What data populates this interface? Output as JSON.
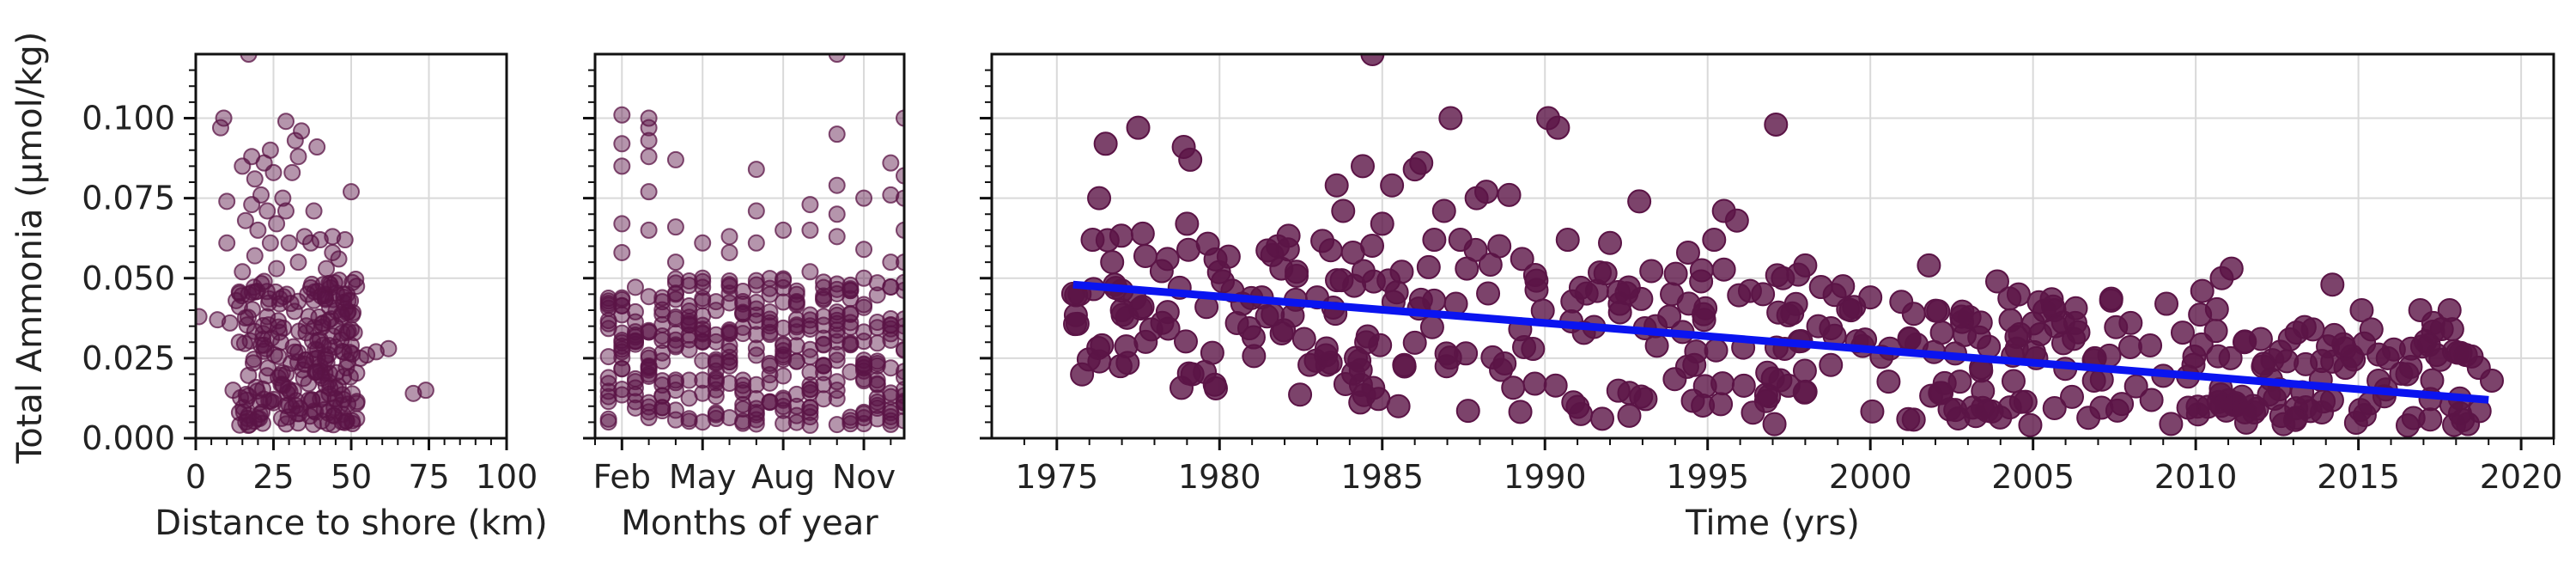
{
  "y_axis_label": "Total Ammonia (µmol/kg)",
  "colors": {
    "points": "#5b1446",
    "trend": "#0a14f0",
    "grid": "#d9d9d9",
    "axis": "#111111"
  },
  "chart_data": [
    {
      "type": "scatter",
      "xlabel": "Distance to shore (km)",
      "ylabel": "Total Ammonia (µmol/kg)",
      "xlim": [
        0,
        100
      ],
      "ylim": [
        0,
        0.12
      ],
      "xticks": [
        "0",
        "25",
        "50",
        "75",
        "100"
      ],
      "yticks": [
        "0.000",
        "0.025",
        "0.050",
        "0.075",
        "0.100"
      ],
      "grid": true,
      "marker_alpha": 0.45,
      "points": [
        [
          1,
          0.038
        ],
        [
          7,
          0.037
        ],
        [
          8,
          0.097
        ],
        [
          9,
          0.1
        ],
        [
          10,
          0.074
        ],
        [
          10,
          0.061
        ],
        [
          11,
          0.036
        ],
        [
          12,
          0.015
        ],
        [
          13,
          0.043
        ],
        [
          14,
          0.03
        ],
        [
          15,
          0.052
        ],
        [
          15,
          0.085
        ],
        [
          16,
          0.068
        ],
        [
          17,
          0.12
        ],
        [
          17,
          0.045
        ],
        [
          18,
          0.088
        ],
        [
          18,
          0.073
        ],
        [
          19,
          0.081
        ],
        [
          19,
          0.057
        ],
        [
          20,
          0.065
        ],
        [
          21,
          0.076
        ],
        [
          21,
          0.029
        ],
        [
          22,
          0.086
        ],
        [
          22,
          0.049
        ],
        [
          23,
          0.071
        ],
        [
          23,
          0.038
        ],
        [
          24,
          0.09
        ],
        [
          24,
          0.061
        ],
        [
          25,
          0.083
        ],
        [
          26,
          0.067
        ],
        [
          26,
          0.053
        ],
        [
          27,
          0.042
        ],
        [
          28,
          0.075
        ],
        [
          29,
          0.099
        ],
        [
          29,
          0.071
        ],
        [
          30,
          0.061
        ],
        [
          31,
          0.083
        ],
        [
          32,
          0.093
        ],
        [
          33,
          0.088
        ],
        [
          33,
          0.055
        ],
        [
          34,
          0.096
        ],
        [
          35,
          0.063
        ],
        [
          36,
          0.045
        ],
        [
          37,
          0.061
        ],
        [
          38,
          0.071
        ],
        [
          39,
          0.091
        ],
        [
          40,
          0.062
        ],
        [
          41,
          0.048
        ],
        [
          42,
          0.053
        ],
        [
          43,
          0.041
        ],
        [
          44,
          0.058
        ],
        [
          44,
          0.063
        ],
        [
          45,
          0.035
        ],
        [
          46,
          0.056
        ],
        [
          47,
          0.038
        ],
        [
          48,
          0.062
        ],
        [
          49,
          0.043
        ],
        [
          50,
          0.077
        ],
        [
          50,
          0.029
        ],
        [
          51,
          0.033
        ],
        [
          53,
          0.025
        ],
        [
          55,
          0.026
        ],
        [
          58,
          0.027
        ],
        [
          62,
          0.028
        ],
        [
          70,
          0.014
        ],
        [
          74,
          0.015
        ]
      ],
      "cluster": {
        "x_range": [
          14,
          52
        ],
        "y_range": [
          0.004,
          0.05
        ],
        "count": 230
      }
    },
    {
      "type": "scatter",
      "xlabel": "Months of year",
      "ylabel": "Total Ammonia (µmol/kg)",
      "xlim": [
        1,
        12.5
      ],
      "ylim": [
        0,
        0.12
      ],
      "xticks": [
        "Feb",
        "May",
        "Aug",
        "Nov"
      ],
      "xtick_values": [
        2,
        5,
        8,
        11
      ],
      "yticks": [
        "0.000",
        "0.025",
        "0.050",
        "0.075",
        "0.100"
      ],
      "grid": true,
      "marker_alpha": 0.45,
      "points": [
        [
          2,
          0.101
        ],
        [
          2,
          0.092
        ],
        [
          2,
          0.085
        ],
        [
          2,
          0.067
        ],
        [
          2,
          0.058
        ],
        [
          3,
          0.1
        ],
        [
          3,
          0.097
        ],
        [
          3,
          0.093
        ],
        [
          3,
          0.088
        ],
        [
          3,
          0.077
        ],
        [
          3,
          0.065
        ],
        [
          4,
          0.087
        ],
        [
          4,
          0.066
        ],
        [
          4,
          0.055
        ],
        [
          5,
          0.061
        ],
        [
          5,
          0.05
        ],
        [
          6,
          0.063
        ],
        [
          6,
          0.058
        ],
        [
          6,
          0.048
        ],
        [
          7,
          0.084
        ],
        [
          7,
          0.071
        ],
        [
          7,
          0.061
        ],
        [
          8,
          0.065
        ],
        [
          8,
          0.047
        ],
        [
          9,
          0.073
        ],
        [
          9,
          0.065
        ],
        [
          9,
          0.052
        ],
        [
          10,
          0.12
        ],
        [
          10,
          0.095
        ],
        [
          10,
          0.079
        ],
        [
          10,
          0.07
        ],
        [
          10,
          0.063
        ],
        [
          11,
          0.075
        ],
        [
          11,
          0.059
        ],
        [
          11,
          0.05
        ],
        [
          12,
          0.086
        ],
        [
          12,
          0.076
        ],
        [
          12,
          0.055
        ],
        [
          12.5,
          0.1
        ],
        [
          12.5,
          0.082
        ],
        [
          12.5,
          0.075
        ],
        [
          12.5,
          0.065
        ],
        [
          12.5,
          0.055
        ]
      ],
      "columns": {
        "months": [
          1.5,
          2,
          2.5,
          3,
          3.5,
          4,
          4.5,
          5,
          5.5,
          6,
          6.5,
          7,
          7.5,
          8,
          8.5,
          9,
          9.5,
          10,
          10.5,
          11,
          11.5,
          12,
          12.5
        ],
        "y_range": [
          0.004,
          0.05
        ]
      }
    },
    {
      "type": "scatter",
      "xlabel": "Time (yrs)",
      "ylabel": "Total Ammonia (µmol/kg)",
      "xlim": [
        1973,
        2021
      ],
      "ylim": [
        0,
        0.12
      ],
      "xticks": [
        "1975",
        "1980",
        "1985",
        "1990",
        "1995",
        "2000",
        "2005",
        "2010",
        "2015",
        "2020"
      ],
      "xtick_values": [
        1975,
        1980,
        1985,
        1990,
        1995,
        2000,
        2005,
        2010,
        2015,
        2020
      ],
      "grid": true,
      "marker_alpha": 0.8,
      "points": [
        [
          1975.7,
          0.045
        ],
        [
          1976.1,
          0.062
        ],
        [
          1976.3,
          0.075
        ],
        [
          1976.5,
          0.092
        ],
        [
          1976.7,
          0.055
        ],
        [
          1977,
          0.04
        ],
        [
          1977.5,
          0.097
        ],
        [
          1977.9,
          0.034
        ],
        [
          1978.4,
          0.056
        ],
        [
          1978.9,
          0.091
        ],
        [
          1979.1,
          0.087
        ],
        [
          1979,
          0.067
        ],
        [
          1979.6,
          0.041
        ],
        [
          1980.1,
          0.049
        ],
        [
          1980.7,
          0.042
        ],
        [
          1981.3,
          0.044
        ],
        [
          1981.9,
          0.053
        ],
        [
          1982.1,
          0.059
        ],
        [
          1982.6,
          0.031
        ],
        [
          1983,
          0.044
        ],
        [
          1983.6,
          0.079
        ],
        [
          1983.8,
          0.071
        ],
        [
          1984.1,
          0.058
        ],
        [
          1984.4,
          0.085
        ],
        [
          1984.7,
          0.12
        ],
        [
          1985,
          0.067
        ],
        [
          1985.3,
          0.079
        ],
        [
          1985.6,
          0.052
        ],
        [
          1986,
          0.084
        ],
        [
          1986.2,
          0.086
        ],
        [
          1986.6,
          0.062
        ],
        [
          1986.9,
          0.071
        ],
        [
          1987.1,
          0.1
        ],
        [
          1987.4,
          0.062
        ],
        [
          1987.6,
          0.053
        ],
        [
          1987.9,
          0.075
        ],
        [
          1988.2,
          0.077
        ],
        [
          1988.6,
          0.06
        ],
        [
          1988.9,
          0.076
        ],
        [
          1989.3,
          0.056
        ],
        [
          1989.7,
          0.051
        ],
        [
          1990.1,
          0.1
        ],
        [
          1990.4,
          0.097
        ],
        [
          1990.7,
          0.062
        ],
        [
          1991.1,
          0.047
        ],
        [
          1991.6,
          0.046
        ],
        [
          1992,
          0.061
        ],
        [
          1992.3,
          0.042
        ],
        [
          1992.9,
          0.074
        ],
        [
          1993.4,
          0.035
        ],
        [
          1993.9,
          0.045
        ],
        [
          1994.4,
          0.058
        ],
        [
          1994.8,
          0.049
        ],
        [
          1995.2,
          0.062
        ],
        [
          1995.5,
          0.071
        ],
        [
          1995.9,
          0.068
        ],
        [
          1996.3,
          0.046
        ],
        [
          1996.7,
          0.045
        ],
        [
          1997.1,
          0.098
        ],
        [
          1997.6,
          0.039
        ],
        [
          1998,
          0.054
        ],
        [
          1998.4,
          0.035
        ],
        [
          1998.9,
          0.032
        ],
        [
          1999.5,
          0.041
        ],
        [
          2000,
          0.044
        ],
        [
          2000.6,
          0.028
        ],
        [
          2001.2,
          0.031
        ],
        [
          2001.8,
          0.054
        ],
        [
          2002.2,
          0.033
        ],
        [
          2002.8,
          0.038
        ],
        [
          2003.4,
          0.022
        ],
        [
          2003.9,
          0.049
        ],
        [
          2004.5,
          0.028
        ],
        [
          2005.1,
          0.025
        ],
        [
          2005.7,
          0.035
        ],
        [
          2006.3,
          0.036
        ],
        [
          2006.9,
          0.025
        ],
        [
          2007.4,
          0.043
        ],
        [
          2008,
          0.036
        ],
        [
          2008.6,
          0.029
        ],
        [
          2009.1,
          0.042
        ],
        [
          2009.6,
          0.033
        ],
        [
          2010.2,
          0.046
        ],
        [
          2010.8,
          0.05
        ],
        [
          2011.1,
          0.053
        ],
        [
          2011.5,
          0.03
        ],
        [
          2012,
          0.031
        ],
        [
          2012.6,
          0.027
        ],
        [
          2013.1,
          0.033
        ],
        [
          2013.6,
          0.034
        ],
        [
          2014.2,
          0.048
        ],
        [
          2014.6,
          0.022
        ],
        [
          2015.1,
          0.04
        ],
        [
          2015.4,
          0.034
        ],
        [
          2015.9,
          0.025
        ],
        [
          2016.5,
          0.02
        ],
        [
          2016.9,
          0.04
        ],
        [
          2017.3,
          0.036
        ],
        [
          2017.8,
          0.04
        ],
        [
          2018.3,
          0.026
        ],
        [
          2018.7,
          0.022
        ],
        [
          2019.1,
          0.018
        ]
      ],
      "cluster": {
        "x_range": [
          1975.5,
          2019
        ],
        "trend_offset_range": [
          -0.03,
          0.022
        ],
        "count": 380
      },
      "trend_line": {
        "x": [
          1975.5,
          2019
        ],
        "y": [
          0.048,
          0.012
        ]
      }
    }
  ]
}
